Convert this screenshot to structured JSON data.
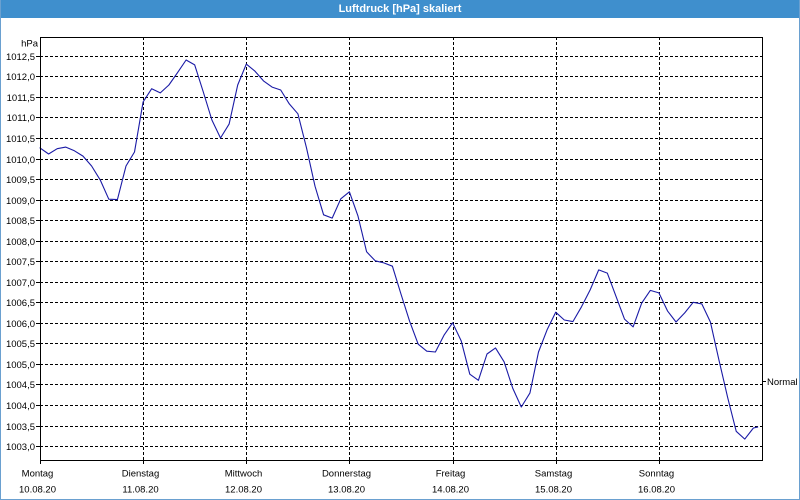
{
  "colors": {
    "title_bar": "#3f8fcd",
    "title_text": "#ffffff",
    "window_border": "#6aa0d0",
    "series_line": "#1a1aa6",
    "grid": "#000000",
    "background": "#ffffff"
  },
  "chart_data": {
    "type": "line",
    "title": "Luftdruck [hPa] skaliert",
    "ylabel": "hPa",
    "grid": true,
    "ylim": [
      1002.66,
      1012.96
    ],
    "xlim": [
      "10.08.20 00:00",
      "17.08.20 00:00"
    ],
    "y_ticks": [
      1003.0,
      1003.5,
      1004.0,
      1004.5,
      1005.0,
      1005.5,
      1006.0,
      1006.5,
      1007.0,
      1007.5,
      1008.0,
      1008.5,
      1009.0,
      1009.5,
      1010.0,
      1010.5,
      1011.0,
      1011.5,
      1012.0,
      1012.5
    ],
    "y_tick_labels": [
      "1003,0",
      "1003,5",
      "1004,0",
      "1004,5",
      "1005,0",
      "1005,5",
      "1006,0",
      "1006,5",
      "1007,0",
      "1007,5",
      "1008,0",
      "1008,5",
      "1009,0",
      "1009,5",
      "1010,0",
      "1010,5",
      "1011,0",
      "1011,5",
      "1012,0",
      "1012,5"
    ],
    "x_ticks": [
      {
        "day": "Montag",
        "date": "10.08.20"
      },
      {
        "day": "Dienstag",
        "date": "11.08.20"
      },
      {
        "day": "Mittwoch",
        "date": "12.08.20"
      },
      {
        "day": "Donnerstag",
        "date": "13.08.20"
      },
      {
        "day": "Freitag",
        "date": "14.08.20"
      },
      {
        "day": "Samstag",
        "date": "15.08.20"
      },
      {
        "day": "Sonntag",
        "date": "16.08.20"
      }
    ],
    "reference_marker": {
      "label": "Normal",
      "value": 1004.58
    },
    "x": [
      "10.08.20 00:00",
      "10.08.20 02:00",
      "10.08.20 04:00",
      "10.08.20 06:00",
      "10.08.20 08:00",
      "10.08.20 10:00",
      "10.08.20 12:00",
      "10.08.20 14:00",
      "10.08.20 16:00",
      "10.08.20 18:00",
      "10.08.20 20:00",
      "10.08.20 22:00",
      "11.08.20 00:00",
      "11.08.20 02:00",
      "11.08.20 04:00",
      "11.08.20 06:00",
      "11.08.20 08:00",
      "11.08.20 10:00",
      "11.08.20 12:00",
      "11.08.20 14:00",
      "11.08.20 16:00",
      "11.08.20 18:00",
      "11.08.20 20:00",
      "11.08.20 22:00",
      "12.08.20 00:00",
      "12.08.20 02:00",
      "12.08.20 04:00",
      "12.08.20 06:00",
      "12.08.20 08:00",
      "12.08.20 10:00",
      "12.08.20 12:00",
      "12.08.20 14:00",
      "12.08.20 16:00",
      "12.08.20 18:00",
      "12.08.20 20:00",
      "12.08.20 22:00",
      "13.08.20 00:00",
      "13.08.20 02:00",
      "13.08.20 04:00",
      "13.08.20 06:00",
      "13.08.20 08:00",
      "13.08.20 10:00",
      "13.08.20 12:00",
      "13.08.20 14:00",
      "13.08.20 16:00",
      "13.08.20 18:00",
      "13.08.20 20:00",
      "13.08.20 22:00",
      "14.08.20 00:00",
      "14.08.20 02:00",
      "14.08.20 04:00",
      "14.08.20 06:00",
      "14.08.20 08:00",
      "14.08.20 10:00",
      "14.08.20 12:00",
      "14.08.20 14:00",
      "14.08.20 16:00",
      "14.08.20 18:00",
      "14.08.20 20:00",
      "14.08.20 22:00",
      "15.08.20 00:00",
      "15.08.20 02:00",
      "15.08.20 04:00",
      "15.08.20 06:00",
      "15.08.20 08:00",
      "15.08.20 10:00",
      "15.08.20 12:00",
      "15.08.20 14:00",
      "15.08.20 16:00",
      "15.08.20 18:00",
      "15.08.20 20:00",
      "15.08.20 22:00",
      "16.08.20 00:00",
      "16.08.20 02:00",
      "16.08.20 04:00",
      "16.08.20 06:00",
      "16.08.20 08:00",
      "16.08.20 10:00",
      "16.08.20 12:00",
      "16.08.20 14:00",
      "16.08.20 16:00",
      "16.08.20 18:00",
      "16.08.20 20:00",
      "16.08.20 22:00",
      "16.08.20 23:00"
    ],
    "series": [
      {
        "values": [
          1010.26,
          1010.11,
          1010.24,
          1010.28,
          1010.19,
          1010.06,
          1009.82,
          1009.48,
          1009.01,
          1009.0,
          1009.82,
          1010.16,
          1011.38,
          1011.7,
          1011.6,
          1011.79,
          1012.09,
          1012.4,
          1012.28,
          1011.62,
          1010.94,
          1010.5,
          1010.84,
          1011.79,
          1012.3,
          1012.13,
          1011.89,
          1011.74,
          1011.67,
          1011.33,
          1011.09,
          1010.26,
          1009.33,
          1008.63,
          1008.55,
          1009.02,
          1009.19,
          1008.6,
          1007.73,
          1007.51,
          1007.46,
          1007.38,
          1006.7,
          1006.04,
          1005.48,
          1005.31,
          1005.29,
          1005.7,
          1006.0,
          1005.56,
          1004.75,
          1004.6,
          1005.24,
          1005.39,
          1005.05,
          1004.41,
          1003.95,
          1004.29,
          1005.29,
          1005.83,
          1006.26,
          1006.07,
          1006.03,
          1006.39,
          1006.8,
          1007.29,
          1007.21,
          1006.65,
          1006.09,
          1005.9,
          1006.48,
          1006.79,
          1006.73,
          1006.29,
          1006.02,
          1006.24,
          1006.5,
          1006.46,
          1006.02,
          1005.09,
          1004.19,
          1003.36,
          1003.17,
          1003.44,
          1003.46
        ]
      }
    ]
  }
}
